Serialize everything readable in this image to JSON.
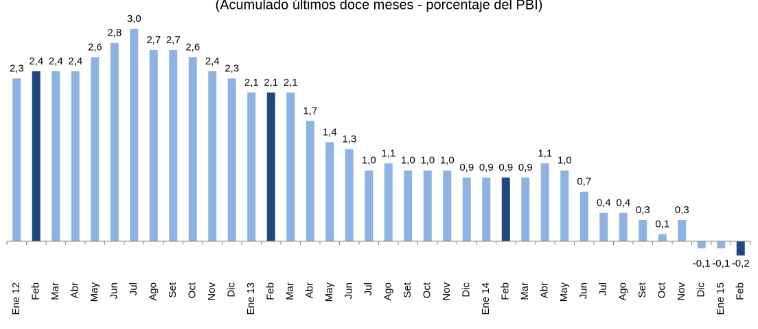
{
  "chart_data": {
    "type": "bar",
    "subtitle": "(Acumulado últimos doce meses - porcentaje del PBI)",
    "categories": [
      "Ene 12",
      "Feb",
      "Mar",
      "Abr",
      "May",
      "Jun",
      "Jul",
      "Ago",
      "Set",
      "Oct",
      "Nov",
      "Dic",
      "Ene 13",
      "Feb",
      "Mar",
      "Abr",
      "May",
      "Jun",
      "Jul",
      "Ago",
      "Set",
      "Oct",
      "Nov",
      "Dic",
      "Ene 14",
      "Feb",
      "Mar",
      "Abr",
      "May",
      "Jun",
      "Jul",
      "Ago",
      "Set",
      "Oct",
      "Nov",
      "Dic",
      "Ene 15",
      "Feb"
    ],
    "values": [
      2.3,
      2.4,
      2.4,
      2.4,
      2.6,
      2.8,
      3.0,
      2.7,
      2.7,
      2.6,
      2.4,
      2.3,
      2.1,
      2.1,
      2.1,
      1.7,
      1.4,
      1.3,
      1.0,
      1.1,
      1.0,
      1.0,
      1.0,
      0.9,
      0.9,
      0.9,
      0.9,
      1.1,
      1.0,
      0.7,
      0.4,
      0.4,
      0.3,
      0.1,
      0.3,
      -0.1,
      -0.1,
      -0.2
    ],
    "value_labels": [
      "2,3",
      "2,4",
      "2,4",
      "2,4",
      "2,6",
      "2,8",
      "3,0",
      "2,7",
      "2,7",
      "2,6",
      "2,4",
      "2,3",
      "2,1",
      "2,1",
      "2,1",
      "1,7",
      "1,4",
      "1,3",
      "1,0",
      "1,1",
      "1,0",
      "1,0",
      "1,0",
      "0,9",
      "0,9",
      "0,9",
      "0,9",
      "1,1",
      "1,0",
      "0,7",
      "0,4",
      "0,4",
      "0,3",
      "0,1",
      "0,3",
      "-0,1",
      "-0,1",
      "-0,2"
    ],
    "colors": [
      "#8db3e2",
      "#1f497d",
      "#8db3e2",
      "#8db3e2",
      "#8db3e2",
      "#8db3e2",
      "#8db3e2",
      "#8db3e2",
      "#8db3e2",
      "#8db3e2",
      "#8db3e2",
      "#8db3e2",
      "#8db3e2",
      "#1f497d",
      "#8db3e2",
      "#8db3e2",
      "#8db3e2",
      "#8db3e2",
      "#8db3e2",
      "#8db3e2",
      "#8db3e2",
      "#8db3e2",
      "#8db3e2",
      "#8db3e2",
      "#8db3e2",
      "#1f497d",
      "#8db3e2",
      "#8db3e2",
      "#8db3e2",
      "#8db3e2",
      "#8db3e2",
      "#8db3e2",
      "#8db3e2",
      "#8db3e2",
      "#8db3e2",
      "#8db3e2",
      "#8db3e2",
      "#1f497d"
    ],
    "ylim": [
      -0.3,
      3.0
    ]
  }
}
